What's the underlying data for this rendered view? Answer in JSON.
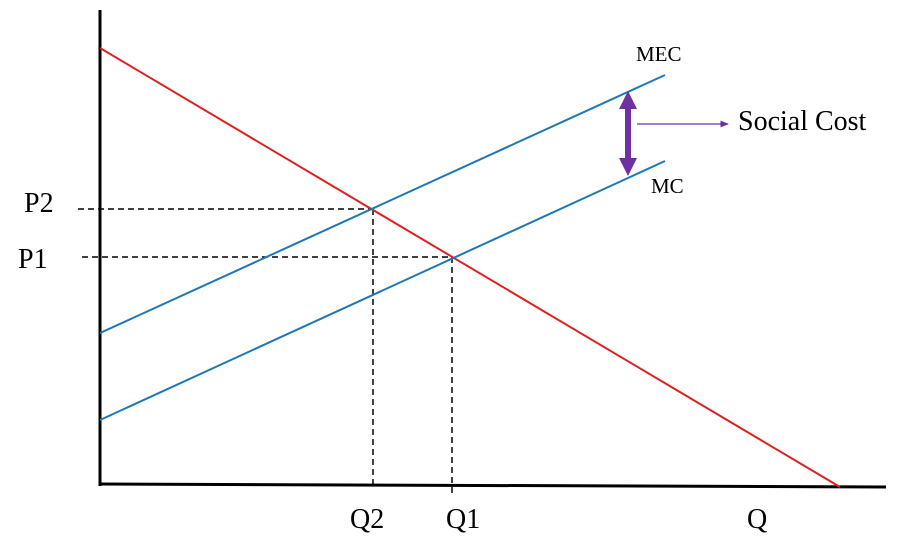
{
  "curve_labels": [
    "MEC",
    "MC"
  ],
  "annotation": "Social Cost",
  "price_labels": [
    "P2",
    "P1"
  ],
  "quantity_labels": [
    "Q2",
    "Q1"
  ],
  "axis_label": "Q"
}
